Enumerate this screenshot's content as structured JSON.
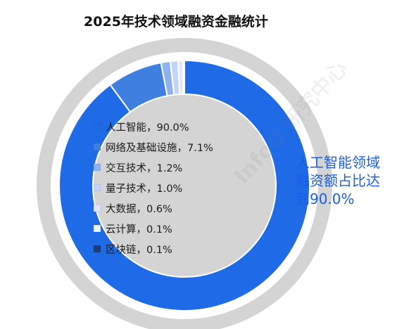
{
  "title": "2025年技术领域融资金融统计",
  "watermark": "InfoQ 研究中心",
  "callout": [
    "人工智能领域",
    "融资额占比达",
    "到90.0%"
  ],
  "colors": {
    "outer_ring": "#d4d4d4",
    "inner_gray": "#d4d4d4",
    "ai": "#1f6ae6",
    "network": "#3f7fe0",
    "interaction": "#8fb1ef",
    "quantum": "#c3d5f5",
    "bigdata": "#dfe8f8",
    "cloud": "#eef3fb",
    "blockchain": "#1a3f7a",
    "callout": "#1a5ee8"
  },
  "chart_data": {
    "type": "pie",
    "subtype": "donut",
    "title": "2025年技术领域融资金融统计",
    "slices": [
      {
        "label": "人工智能",
        "value": 90.0,
        "display": "人工智能，90.0%",
        "color": "#1f6ae6"
      },
      {
        "label": "网络及基础设施",
        "value": 7.1,
        "display": "网络及基础设施，7.1%",
        "color": "#3f7fe0"
      },
      {
        "label": "交互技术",
        "value": 1.2,
        "display": "交互技术，1.2%",
        "color": "#8fb1ef"
      },
      {
        "label": "量子技术",
        "value": 1.0,
        "display": "量子技术，1.0%",
        "color": "#c3d5f5"
      },
      {
        "label": "大数据",
        "value": 0.6,
        "display": "大数据，0.6%",
        "color": "#dfe8f8"
      },
      {
        "label": "云计算",
        "value": 0.1,
        "display": "云计算，0.1%",
        "color": "#eef3fb"
      },
      {
        "label": "区块链",
        "value": 0.1,
        "display": "区块链，0.1%",
        "color": "#1a3f7a"
      }
    ],
    "legend_position": "center"
  }
}
